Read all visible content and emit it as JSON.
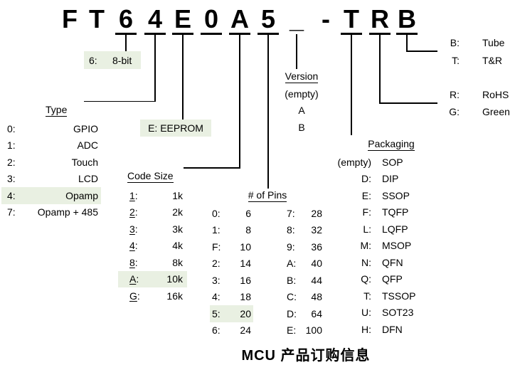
{
  "colors": {
    "highlight": "#e9f0e2",
    "line": "#000000",
    "text": "#000000"
  },
  "part_number": {
    "full": "FT64E0A5_-TRB",
    "chars": [
      {
        "ch": "F",
        "underline": false
      },
      {
        "ch": "T",
        "underline": false
      },
      {
        "ch": "6",
        "underline": true
      },
      {
        "ch": "4",
        "underline": true
      },
      {
        "ch": "E",
        "underline": true
      },
      {
        "ch": "0",
        "underline": true
      },
      {
        "ch": "A",
        "underline": true
      },
      {
        "ch": "5",
        "underline": true
      },
      {
        "ch": "_",
        "underline": false
      },
      {
        "ch": "-",
        "underline": false
      },
      {
        "ch": "T",
        "underline": true
      },
      {
        "ch": "R",
        "underline": true
      },
      {
        "ch": "B",
        "underline": true
      }
    ]
  },
  "callouts": {
    "bits": {
      "key": "6:",
      "value": "8-bit"
    },
    "eeprom": {
      "label": "E: EEPROM"
    }
  },
  "type": {
    "header": "Type",
    "rows": [
      {
        "key": "0:",
        "value": "GPIO",
        "highlight": false
      },
      {
        "key": "1:",
        "value": "ADC",
        "highlight": false
      },
      {
        "key": "2:",
        "value": "Touch",
        "highlight": false
      },
      {
        "key": "3:",
        "value": "LCD",
        "highlight": false
      },
      {
        "key": "4:",
        "value": "Opamp",
        "highlight": true
      },
      {
        "key": "7:",
        "value": "Opamp + 485",
        "highlight": false
      }
    ]
  },
  "code_size": {
    "header": "Code Size",
    "rows": [
      {
        "key": "1:",
        "value": "1k",
        "highlight": false
      },
      {
        "key": "2:",
        "value": "2k",
        "highlight": false
      },
      {
        "key": "3:",
        "value": "3k",
        "highlight": false
      },
      {
        "key": "4:",
        "value": "4k",
        "highlight": false
      },
      {
        "key": "8:",
        "value": "8k",
        "highlight": false
      },
      {
        "key": "A:",
        "value": "10k",
        "highlight": true
      },
      {
        "key": "G:",
        "value": "16k",
        "highlight": false
      }
    ]
  },
  "pins": {
    "header": "# of Pins",
    "col1": [
      {
        "key": "0:",
        "value": "6",
        "highlight": false
      },
      {
        "key": "1:",
        "value": "8",
        "highlight": false
      },
      {
        "key": "F:",
        "value": "10",
        "highlight": false
      },
      {
        "key": "2:",
        "value": "14",
        "highlight": false
      },
      {
        "key": "3:",
        "value": "16",
        "highlight": false
      },
      {
        "key": "4:",
        "value": "18",
        "highlight": false
      },
      {
        "key": "5:",
        "value": "20",
        "highlight": true
      },
      {
        "key": "6:",
        "value": "24",
        "highlight": false
      }
    ],
    "col2": [
      {
        "key": "7:",
        "value": "28",
        "highlight": false
      },
      {
        "key": "8:",
        "value": "32",
        "highlight": false
      },
      {
        "key": "9:",
        "value": "36",
        "highlight": false
      },
      {
        "key": "A:",
        "value": "40",
        "highlight": false
      },
      {
        "key": "B:",
        "value": "44",
        "highlight": false
      },
      {
        "key": "C:",
        "value": "48",
        "highlight": false
      },
      {
        "key": "D:",
        "value": "64",
        "highlight": false
      },
      {
        "key": "E:",
        "value": "100",
        "highlight": false
      }
    ]
  },
  "version": {
    "header": "Version",
    "options": [
      "(empty)",
      "A",
      "B"
    ]
  },
  "packaging": {
    "header": "Packaging",
    "rows": [
      {
        "key": "(empty)",
        "value": "SOP",
        "highlight": false
      },
      {
        "key": "D:",
        "value": "DIP",
        "highlight": false
      },
      {
        "key": "E:",
        "value": "SSOP",
        "highlight": false
      },
      {
        "key": "F:",
        "value": "TQFP",
        "highlight": false
      },
      {
        "key": "L:",
        "value": "LQFP",
        "highlight": false
      },
      {
        "key": "M:",
        "value": "MSOP",
        "highlight": false
      },
      {
        "key": "N:",
        "value": "QFN",
        "highlight": false
      },
      {
        "key": "Q:",
        "value": "QFP",
        "highlight": false
      },
      {
        "key": "T:",
        "value": "TSSOP",
        "highlight": false
      },
      {
        "key": "U:",
        "value": "SOT23",
        "highlight": false
      },
      {
        "key": "H:",
        "value": "DFN",
        "highlight": false
      }
    ]
  },
  "packing": {
    "rows": [
      {
        "key": "B:",
        "value": "Tube"
      },
      {
        "key": "T:",
        "value": "T&R"
      }
    ]
  },
  "rohs": {
    "rows": [
      {
        "key": "R:",
        "value": "RoHS"
      },
      {
        "key": "G:",
        "value": "Green"
      }
    ]
  },
  "caption": "MCU 产品订购信息"
}
